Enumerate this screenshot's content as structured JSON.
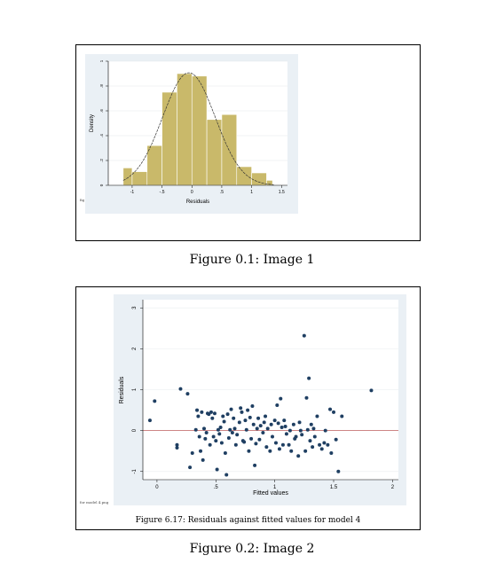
{
  "figures": [
    {
      "caption": "Figure 0.1: Image 1",
      "chart_data": {
        "type": "bar",
        "xlabel": "Residuals",
        "ylabel": "Density",
        "xlim": [
          -1.4,
          1.6
        ],
        "ylim": [
          0,
          1
        ],
        "xticks": [
          "-1",
          "-.5",
          "0",
          ".5",
          "1",
          "1.5"
        ],
        "yticks": [
          "0",
          ".2",
          ".4",
          ".6",
          ".8",
          "1"
        ],
        "bins": [
          {
            "x0": -1.15,
            "x1": -1.0,
            "y": 0.14
          },
          {
            "x0": -1.0,
            "x1": -0.75,
            "y": 0.11
          },
          {
            "x0": -0.75,
            "x1": -0.5,
            "y": 0.32
          },
          {
            "x0": -0.5,
            "x1": -0.25,
            "y": 0.75
          },
          {
            "x0": -0.25,
            "x1": 0.0,
            "y": 0.9
          },
          {
            "x0": 0.0,
            "x1": 0.25,
            "y": 0.88
          },
          {
            "x0": 0.25,
            "x1": 0.5,
            "y": 0.53
          },
          {
            "x0": 0.5,
            "x1": 0.75,
            "y": 0.57
          },
          {
            "x0": 0.75,
            "x1": 1.0,
            "y": 0.15
          },
          {
            "x0": 1.0,
            "x1": 1.25,
            "y": 0.1
          },
          {
            "x0": 1.25,
            "x1": 1.35,
            "y": 0.04
          }
        ],
        "normal_curve": {
          "mean": -0.05,
          "sd": 0.44
        },
        "grid": true,
        "colors": {
          "bar": "#c9b96a",
          "bar_edge": "#ffffff",
          "panel": "#eaf0f5",
          "curve": "#333333"
        }
      },
      "note": "fig"
    },
    {
      "caption": "Figure 0.2: Image 2",
      "inner_caption": "Figure 6.17: Residuals against fitted values for model 4",
      "chart_data": {
        "type": "scatter",
        "xlabel": "Fitted values",
        "ylabel": "Residuals",
        "xlim": [
          -0.12,
          2.05
        ],
        "ylim": [
          -1.2,
          3.2
        ],
        "xticks": [
          "0",
          ".5",
          "1",
          "1.5",
          "2"
        ],
        "yticks": [
          "-1",
          "0",
          "1",
          "2",
          "3"
        ],
        "reference_line": {
          "y": 0,
          "color": "#c06060"
        },
        "points": [
          [
            -0.06,
            0.25
          ],
          [
            -0.02,
            0.72
          ],
          [
            0.17,
            -0.35
          ],
          [
            0.17,
            -0.42
          ],
          [
            0.2,
            1.02
          ],
          [
            0.26,
            0.9
          ],
          [
            0.28,
            -0.9
          ],
          [
            0.3,
            -0.55
          ],
          [
            0.33,
            0.02
          ],
          [
            0.34,
            0.5
          ],
          [
            0.35,
            0.35
          ],
          [
            0.36,
            -0.15
          ],
          [
            0.37,
            -0.5
          ],
          [
            0.38,
            0.45
          ],
          [
            0.39,
            -0.72
          ],
          [
            0.4,
            0.05
          ],
          [
            0.41,
            -0.2
          ],
          [
            0.42,
            -0.05
          ],
          [
            0.43,
            0.42
          ],
          [
            0.44,
            0.4
          ],
          [
            0.45,
            -0.35
          ],
          [
            0.46,
            0.45
          ],
          [
            0.47,
            0.3
          ],
          [
            0.48,
            -0.15
          ],
          [
            0.49,
            0.42
          ],
          [
            0.5,
            -0.25
          ],
          [
            0.51,
            -0.95
          ],
          [
            0.52,
            0.02
          ],
          [
            0.53,
            -0.08
          ],
          [
            0.54,
            0.08
          ],
          [
            0.55,
            -0.3
          ],
          [
            0.56,
            0.35
          ],
          [
            0.57,
            0.22
          ],
          [
            0.58,
            -0.55
          ],
          [
            0.59,
            -1.08
          ],
          [
            0.6,
            0.4
          ],
          [
            0.61,
            -0.18
          ],
          [
            0.62,
            0.02
          ],
          [
            0.63,
            0.52
          ],
          [
            0.64,
            -0.05
          ],
          [
            0.65,
            0.3
          ],
          [
            0.66,
            0.05
          ],
          [
            0.67,
            -0.35
          ],
          [
            0.68,
            -0.1
          ],
          [
            0.7,
            0.2
          ],
          [
            0.71,
            0.55
          ],
          [
            0.72,
            0.45
          ],
          [
            0.73,
            -0.25
          ],
          [
            0.74,
            -0.28
          ],
          [
            0.75,
            0.25
          ],
          [
            0.76,
            0.02
          ],
          [
            0.77,
            0.5
          ],
          [
            0.78,
            -0.5
          ],
          [
            0.79,
            0.32
          ],
          [
            0.8,
            -0.2
          ],
          [
            0.81,
            0.6
          ],
          [
            0.82,
            0.15
          ],
          [
            0.83,
            -0.85
          ],
          [
            0.84,
            -0.32
          ],
          [
            0.85,
            0.05
          ],
          [
            0.86,
            0.3
          ],
          [
            0.87,
            -0.22
          ],
          [
            0.88,
            0.12
          ],
          [
            0.9,
            -0.05
          ],
          [
            0.91,
            0.2
          ],
          [
            0.92,
            0.35
          ],
          [
            0.93,
            -0.4
          ],
          [
            0.94,
            0.05
          ],
          [
            0.96,
            -0.5
          ],
          [
            0.97,
            0.15
          ],
          [
            0.98,
            -0.15
          ],
          [
            1.0,
            0.25
          ],
          [
            1.01,
            -0.3
          ],
          [
            1.02,
            0.62
          ],
          [
            1.03,
            0.18
          ],
          [
            1.04,
            -0.45
          ],
          [
            1.05,
            0.78
          ],
          [
            1.06,
            0.08
          ],
          [
            1.07,
            -0.35
          ],
          [
            1.08,
            0.25
          ],
          [
            1.09,
            0.1
          ],
          [
            1.1,
            -0.08
          ],
          [
            1.12,
            -0.35
          ],
          [
            1.13,
            0.0
          ],
          [
            1.14,
            -0.5
          ],
          [
            1.16,
            0.15
          ],
          [
            1.17,
            -0.2
          ],
          [
            1.18,
            -0.15
          ],
          [
            1.2,
            -0.62
          ],
          [
            1.21,
            0.2
          ],
          [
            1.22,
            0.0
          ],
          [
            1.23,
            -0.1
          ],
          [
            1.25,
            2.32
          ],
          [
            1.26,
            -0.5
          ],
          [
            1.27,
            0.8
          ],
          [
            1.28,
            0.02
          ],
          [
            1.29,
            1.28
          ],
          [
            1.3,
            -0.25
          ],
          [
            1.31,
            0.15
          ],
          [
            1.32,
            -0.4
          ],
          [
            1.33,
            0.05
          ],
          [
            1.34,
            -0.15
          ],
          [
            1.36,
            0.35
          ],
          [
            1.38,
            -0.35
          ],
          [
            1.4,
            -0.45
          ],
          [
            1.42,
            -0.3
          ],
          [
            1.43,
            0.0
          ],
          [
            1.45,
            -0.35
          ],
          [
            1.47,
            0.52
          ],
          [
            1.48,
            -0.55
          ],
          [
            1.5,
            0.45
          ],
          [
            1.52,
            -0.22
          ],
          [
            1.54,
            -1.0
          ],
          [
            1.57,
            0.35
          ],
          [
            1.82,
            0.98
          ]
        ],
        "grid": true,
        "colors": {
          "point": "#1f3f62",
          "panel": "#eaf0f5",
          "plot_bg": "#ffffff"
        }
      },
      "note": "for model 4.png"
    }
  ]
}
